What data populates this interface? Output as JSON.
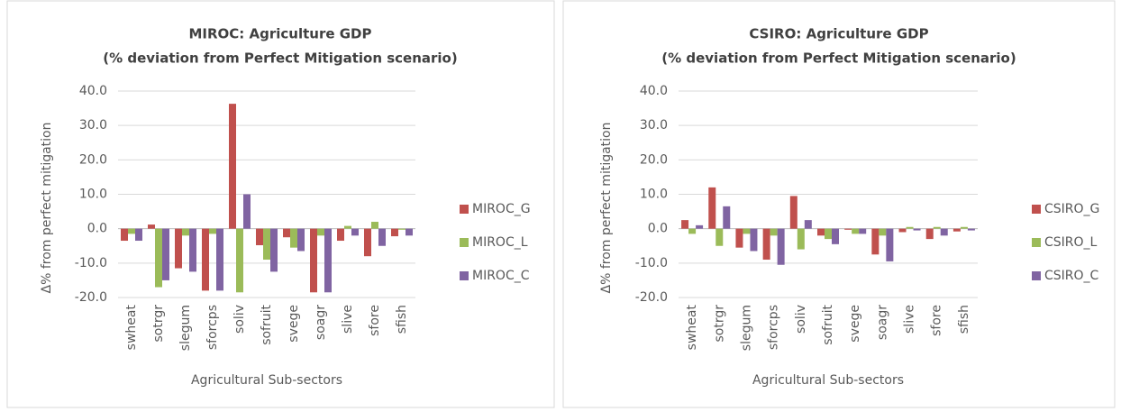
{
  "chart_data": [
    {
      "type": "bar",
      "title": "MIROC: Agriculture GDP",
      "subtitle": "(% deviation from Perfect Mitigation scenario)",
      "x_label": "Agricultural Sub-sectors",
      "y_label": "Δ% from perfect mitigation",
      "categories": [
        "swheat",
        "sotrgr",
        "slegum",
        "sforcps",
        "soliv",
        "sofruit",
        "svege",
        "soagr",
        "slive",
        "sfore",
        "sfish"
      ],
      "series": [
        {
          "name": "MIROC_G",
          "color": "#c0504d",
          "values": [
            -3.5,
            1.2,
            -11.5,
            -18,
            36.3,
            -4.8,
            -2.5,
            -18.5,
            -3.5,
            -8,
            -2.2
          ]
        },
        {
          "name": "MIROC_L",
          "color": "#9bbb59",
          "values": [
            -1.5,
            -17,
            -2,
            -1.5,
            -18.5,
            -9,
            -5.5,
            -2,
            0.8,
            2,
            -0.3
          ]
        },
        {
          "name": "MIROC_C",
          "color": "#8064a2",
          "values": [
            -3.5,
            -15,
            -12.5,
            -18,
            10,
            -12.5,
            -6.5,
            -18.5,
            -2,
            -5,
            -2
          ]
        }
      ],
      "ylim": [
        -20,
        40
      ],
      "yticks": [
        {
          "value": -20,
          "label": "-20.0"
        },
        {
          "value": -10,
          "label": "-10.0"
        },
        {
          "value": 0,
          "label": "0.0"
        },
        {
          "value": 10,
          "label": "10.0"
        },
        {
          "value": 20,
          "label": "20.0"
        },
        {
          "value": 30,
          "label": "30.0"
        },
        {
          "value": 40,
          "label": "40.0"
        }
      ],
      "grid": true,
      "legend": "right"
    },
    {
      "type": "bar",
      "title": "CSIRO: Agriculture GDP",
      "subtitle": "(% deviation from Perfect Mitigation scenario)",
      "x_label": "Agricultural Sub-sectors",
      "y_label": "Δ% from perfect mitigation",
      "categories": [
        "swheat",
        "sotrgr",
        "slegum",
        "sforcps",
        "soliv",
        "sofruit",
        "svege",
        "soagr",
        "slive",
        "sfore",
        "sfish"
      ],
      "series": [
        {
          "name": "CSIRO_G",
          "color": "#c0504d",
          "values": [
            2.5,
            12,
            -5.5,
            -9,
            9.5,
            -2,
            -0.3,
            -7.5,
            -1,
            -3,
            -0.8
          ]
        },
        {
          "name": "CSIRO_L",
          "color": "#9bbb59",
          "values": [
            -1.5,
            -5,
            -1.5,
            -2,
            -6,
            -3,
            -1.5,
            -2,
            0.5,
            0.5,
            0.5
          ]
        },
        {
          "name": "CSIRO_C",
          "color": "#8064a2",
          "values": [
            1,
            6.5,
            -6.5,
            -10.5,
            2.5,
            -4.5,
            -1.5,
            -9.5,
            -0.5,
            -2,
            -0.5
          ]
        }
      ],
      "ylim": [
        -20,
        40
      ],
      "yticks": [
        {
          "value": -20,
          "label": "-20.0"
        },
        {
          "value": -10,
          "label": "-10.0"
        },
        {
          "value": 0,
          "label": "0.0"
        },
        {
          "value": 10,
          "label": "10.0"
        },
        {
          "value": 20,
          "label": "20.0"
        },
        {
          "value": 30,
          "label": "30.0"
        },
        {
          "value": 40,
          "label": "40.0"
        }
      ],
      "grid": true,
      "legend": "right"
    }
  ]
}
